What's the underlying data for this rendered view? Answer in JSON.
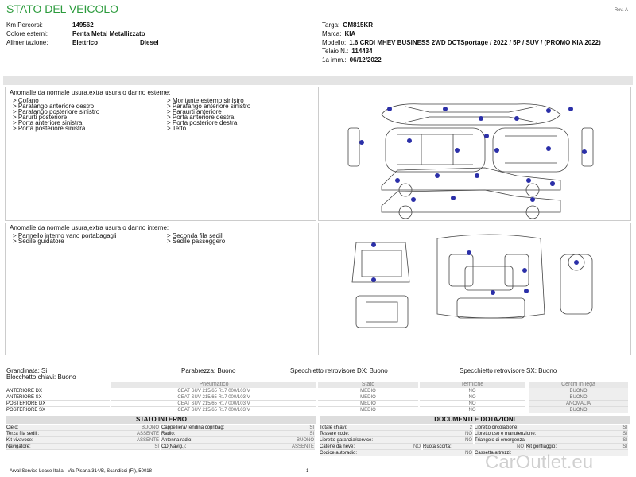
{
  "header": {
    "title": "STATO DEL VEICOLO",
    "rev": "Rev. A"
  },
  "vehicle": {
    "left": [
      {
        "label": "Km Percorsi:",
        "value": "149562"
      },
      {
        "label": "Colore esterni:",
        "value": "Penta Metal Metallizzato"
      },
      {
        "label": "Alimentazione:",
        "value": "Elettrico",
        "value2": "Diesel"
      }
    ],
    "right": [
      {
        "label": "Targa:",
        "value": "GM815KR"
      },
      {
        "label": "Marca:",
        "value": "KIA"
      },
      {
        "label": "Modello:",
        "value": "1.6 CRDI MHEV BUSINESS 2WD DCTSportage / 2022 / 5P / SUV / (PROMO KIA 2022)"
      },
      {
        "label": "Telaio N.:",
        "value": "114434"
      },
      {
        "label": "1a imm.:",
        "value": "06/12/2022"
      }
    ]
  },
  "exterior": {
    "title": "Anomalie da normale usura,extra usura o danno esterne:",
    "col1": [
      "> Cofano",
      "> Parafango anteriore destro",
      "> Parafango posteriore sinistro",
      "> Parurti posteriore",
      "> Porta anteriore sinistra",
      "> Porta posteriore sinistra"
    ],
    "col2": [
      "> Montante esterno sinistro",
      "> Parafango anteriore sinistro",
      "> Paraurti anteriore",
      "> Porta anteriore destra",
      "> Porta posteriore destra",
      "> Tetto"
    ]
  },
  "interior": {
    "title": "Anomalie da normale usura,extra usura o danno interne:",
    "col1": [
      "> Pannello interno vano portabagagli",
      "> Sedile guidatore"
    ],
    "col2": [
      "> Seconda fila sedili",
      "> Sedile passeggero"
    ]
  },
  "conditions": {
    "grandinata": "Grandinata: Si",
    "blocchetto": "Blocchetto chiavi: Buono",
    "parabrezza": "Parabrezza: Buono",
    "specchio_dx": "Specchietto retrovisore DX: Buono",
    "specchio_sx": "Specchietto retrovisore SX: Buono"
  },
  "tyres": {
    "headers": [
      "Pneumatico",
      "Stato",
      "Termiche",
      "Cerchi in lega"
    ],
    "rows": [
      [
        "ANTERIORE DX",
        "CEAT SUV 215/65 R17 000/103 V",
        "MEDIO",
        "NO",
        "BUONO"
      ],
      [
        "ANTERIORE SX",
        "CEAT SUV 215/65 R17 000/103 V",
        "MEDIO",
        "NO",
        "BUONO"
      ],
      [
        "POSTERIORE DX",
        "CEAT SUV 215/65 R17 000/103 V",
        "MEDIO",
        "NO",
        "ANOMALIA"
      ],
      [
        "POSTERIORE SX",
        "CEAT SUV 215/65 R17 000/103 V",
        "MEDIO",
        "NO",
        "BUONO"
      ]
    ]
  },
  "interno": {
    "title": "STATO INTERNO",
    "rows": [
      [
        [
          "Cielo:",
          "BUONO"
        ],
        [
          "Cappelliera/Tendina copribag:",
          "SI"
        ]
      ],
      [
        [
          "Terza fila sedili:",
          "ASSENTE"
        ],
        [
          "Radio:",
          "SI"
        ]
      ],
      [
        [
          "Kit vivavoce:",
          "ASSENTE"
        ],
        [
          "Antenna radio:",
          "BUONO"
        ]
      ],
      [
        [
          "Navigatore:",
          "SI"
        ],
        [
          "CD(Navig.):",
          "ASSENTE"
        ]
      ]
    ]
  },
  "documenti": {
    "title": "DOCUMENTI E DOTAZIONI",
    "rows": [
      [
        [
          "Totale chiavi:",
          "2"
        ],
        [
          "Libretto circolazione:",
          "SI"
        ]
      ],
      [
        [
          "Tessere code:",
          "NO"
        ],
        [
          "Libretto uso e manutenzione:",
          "SI"
        ]
      ],
      [
        [
          "Libretto garanzia/service:",
          "NO"
        ],
        [
          "Triangolo di emergenza:",
          "SI"
        ]
      ],
      [
        [
          "Catene da neve:",
          "NO"
        ],
        [
          "Ruota scorta:",
          "NO"
        ],
        [
          "Kit gonfiaggio:",
          "SI"
        ]
      ],
      [
        [
          "Codice autoradio:",
          "NO"
        ],
        [
          "Cassetta attrezzi:"
        ]
      ]
    ]
  },
  "footer": {
    "address": "Arval Service Lease Italia - Via Pisana 314/B, Scandicci (FI), 50018",
    "page": "1",
    "watermark": "CarOutlet.eu"
  }
}
